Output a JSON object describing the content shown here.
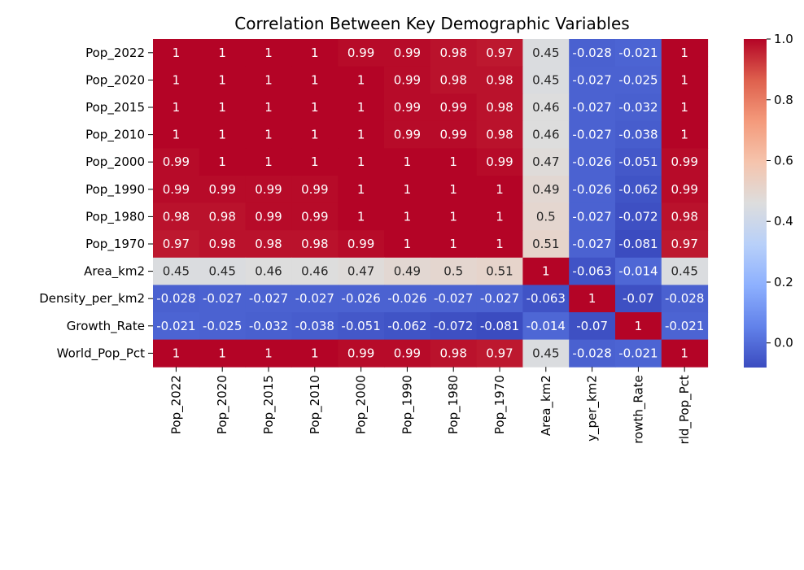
{
  "chart_data": {
    "type": "heatmap",
    "title": "Correlation Between Key Demographic Variables",
    "xlabel": "",
    "ylabel": "",
    "row_labels": [
      "Pop_2022",
      "Pop_2020",
      "Pop_2015",
      "Pop_2010",
      "Pop_2000",
      "Pop_1990",
      "Pop_1980",
      "Pop_1970",
      "Area_km2",
      "Density_per_km2",
      "Growth_Rate",
      "World_Pop_Pct"
    ],
    "col_labels": [
      "Pop_2022",
      "Pop_2020",
      "Pop_2015",
      "Pop_2010",
      "Pop_2000",
      "Pop_1990",
      "Pop_1980",
      "Pop_1970",
      "Area_km2",
      "y_per_km2",
      "rowth_Rate",
      "rld_Pop_Pct"
    ],
    "values": [
      [
        1,
        1,
        1,
        1,
        0.99,
        0.99,
        0.98,
        0.97,
        0.45,
        -0.028,
        -0.021,
        1
      ],
      [
        1,
        1,
        1,
        1,
        1,
        0.99,
        0.98,
        0.98,
        0.45,
        -0.027,
        -0.025,
        1
      ],
      [
        1,
        1,
        1,
        1,
        1,
        0.99,
        0.99,
        0.98,
        0.46,
        -0.027,
        -0.032,
        1
      ],
      [
        1,
        1,
        1,
        1,
        1,
        0.99,
        0.99,
        0.98,
        0.46,
        -0.027,
        -0.038,
        1
      ],
      [
        0.99,
        1,
        1,
        1,
        1,
        1,
        1,
        0.99,
        0.47,
        -0.026,
        -0.051,
        0.99
      ],
      [
        0.99,
        0.99,
        0.99,
        0.99,
        1,
        1,
        1,
        1,
        0.49,
        -0.026,
        -0.062,
        0.99
      ],
      [
        0.98,
        0.98,
        0.99,
        0.99,
        1,
        1,
        1,
        1,
        0.5,
        -0.027,
        -0.072,
        0.98
      ],
      [
        0.97,
        0.98,
        0.98,
        0.98,
        0.99,
        1,
        1,
        1,
        0.51,
        -0.027,
        -0.081,
        0.97
      ],
      [
        0.45,
        0.45,
        0.46,
        0.46,
        0.47,
        0.49,
        0.5,
        0.51,
        1,
        -0.063,
        -0.014,
        0.45
      ],
      [
        -0.028,
        -0.027,
        -0.027,
        -0.027,
        -0.026,
        -0.026,
        -0.027,
        -0.027,
        -0.063,
        1,
        -0.07,
        -0.028
      ],
      [
        -0.021,
        -0.025,
        -0.032,
        -0.038,
        -0.051,
        -0.062,
        -0.072,
        -0.081,
        -0.014,
        -0.07,
        1,
        -0.021
      ],
      [
        1,
        1,
        1,
        1,
        0.99,
        0.99,
        0.98,
        0.97,
        0.45,
        -0.028,
        -0.021,
        1
      ]
    ],
    "colormap": "coolwarm",
    "color_range": [
      -0.081,
      1.0
    ],
    "colorbar_ticks": [
      0.0,
      0.2,
      0.4,
      0.6,
      0.8,
      1.0
    ],
    "colorbar_tick_labels": [
      "0.0",
      "0.2",
      "0.4",
      "0.6",
      "0.8",
      "1.0"
    ],
    "annotated": true,
    "legend": "colorbar-right"
  }
}
